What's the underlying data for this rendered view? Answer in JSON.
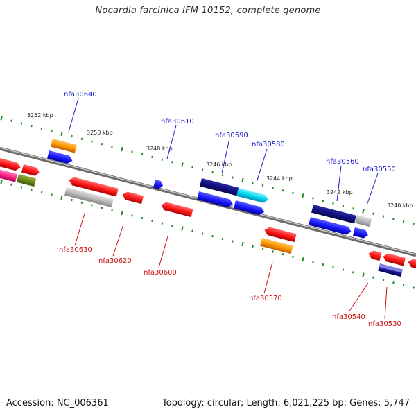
{
  "title": "Nocardia farcinica IFM 10152, complete genome",
  "footer": {
    "accession": "Accession: NC_006361",
    "summary": "Topology: circular; Length: 6,021,225 bp; Genes: 5,747"
  },
  "scale_labels": [
    "3252 kbp",
    "3250 kbp",
    "3248 kbp",
    "3246 kbp",
    "3244 kbp",
    "3242 kbp",
    "3240 kbp"
  ],
  "top_genes": [
    "nfa30640",
    "nfa30610",
    "nfa30590",
    "nfa30580",
    "nfa30560",
    "nfa30550"
  ],
  "bottom_genes": [
    "nfa30630",
    "nfa30620",
    "nfa30600",
    "nfa30570",
    "nfa30540",
    "nfa30530"
  ],
  "colors": {
    "backbone": "#808080",
    "scale_dots": "#1a8a1a",
    "top_label": "#1a1acc",
    "bottom_label": "#cc1111",
    "red": "#ff1a1a",
    "blue": "#1a1aff",
    "navy": "#101080",
    "orange": "#ff9900",
    "gray": "#b8b8b8",
    "cyan": "#00d8f0",
    "pink": "#ff2a8a",
    "olive": "#6a8a1a"
  }
}
